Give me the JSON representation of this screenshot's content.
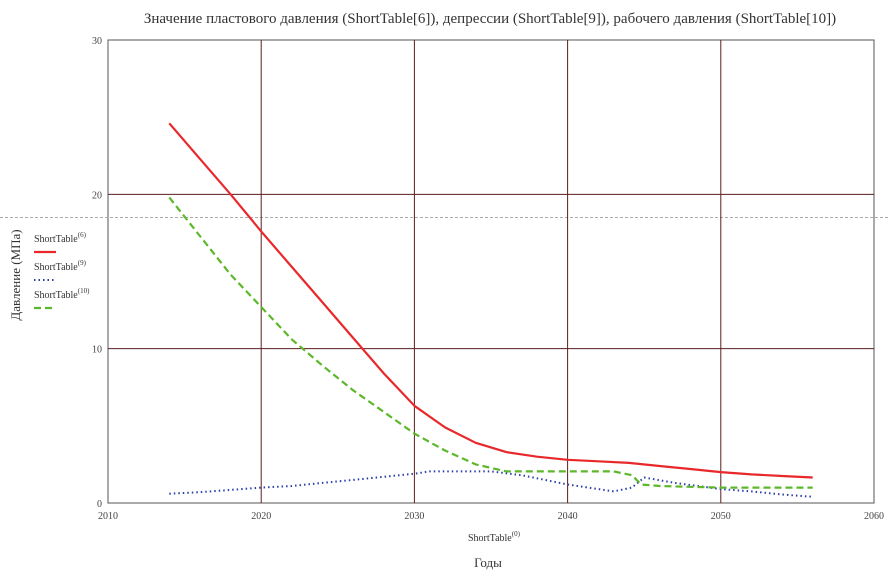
{
  "chart_data": {
    "type": "line",
    "title": "Значение пластового давления (ShortTable[6]), депрессии (ShortTable[9]), рабочего давления (ShortTable[10])",
    "xlabel": "Годы",
    "xlabel_var": "ShortTable",
    "xlabel_sup": "(0)",
    "ylabel": "Давление (МПа)",
    "xlim": [
      2010,
      2060
    ],
    "ylim": [
      0,
      30
    ],
    "x_ticks": [
      2010,
      2020,
      2030,
      2040,
      2050,
      2060
    ],
    "x_tick_labels": [
      "2010",
      "2020",
      "2030",
      "2040",
      "2050",
      "2060"
    ],
    "y_ticks": [
      0,
      10,
      20,
      30
    ],
    "y_tick_labels": [
      "0",
      "10",
      "20",
      "30"
    ],
    "grid": true,
    "grid_color": "#5a1e1e",
    "reference_line_y": 18.5,
    "legend": "left",
    "series": [
      {
        "name": "ShortTable",
        "sup": "(6)",
        "color": "#e8282b",
        "style": "solid",
        "x": [
          2014,
          2016,
          2018,
          2020,
          2022,
          2024,
          2026,
          2028,
          2030,
          2032,
          2034,
          2036,
          2038,
          2040,
          2042,
          2044,
          2046,
          2048,
          2050,
          2052,
          2054,
          2056
        ],
        "y": [
          24.6,
          22.3,
          20.0,
          17.6,
          15.3,
          13.0,
          10.7,
          8.4,
          6.3,
          4.9,
          3.9,
          3.3,
          3.0,
          2.8,
          2.7,
          2.6,
          2.4,
          2.2,
          2.0,
          1.85,
          1.75,
          1.65
        ]
      },
      {
        "name": "ShortTable",
        "sup": "(9)",
        "color": "#2b3fa8",
        "style": "dotted",
        "x": [
          2014,
          2016,
          2018,
          2020,
          2022,
          2024,
          2026,
          2028,
          2030,
          2031,
          2033,
          2035,
          2037,
          2040,
          2043,
          2044.2,
          2045,
          2047,
          2050,
          2052,
          2054,
          2056
        ],
        "y": [
          0.6,
          0.7,
          0.85,
          1.0,
          1.1,
          1.3,
          1.5,
          1.7,
          1.9,
          2.05,
          2.05,
          2.05,
          1.8,
          1.2,
          0.75,
          1.0,
          1.65,
          1.3,
          0.9,
          0.75,
          0.55,
          0.4
        ]
      },
      {
        "name": "ShortTable",
        "sup": "(10)",
        "color": "#5cb82a",
        "style": "dashed",
        "x": [
          2014,
          2016,
          2018,
          2020,
          2022,
          2024,
          2026,
          2028,
          2030,
          2032,
          2034,
          2036,
          2038,
          2040,
          2043,
          2044.2,
          2044.8,
          2046,
          2048,
          2050,
          2052,
          2054,
          2056
        ],
        "y": [
          19.8,
          17.3,
          14.8,
          12.7,
          10.6,
          8.9,
          7.3,
          5.9,
          4.5,
          3.4,
          2.5,
          2.05,
          2.05,
          2.05,
          2.05,
          1.8,
          1.2,
          1.1,
          1.05,
          1.0,
          1.0,
          1.0,
          1.0
        ]
      }
    ]
  }
}
